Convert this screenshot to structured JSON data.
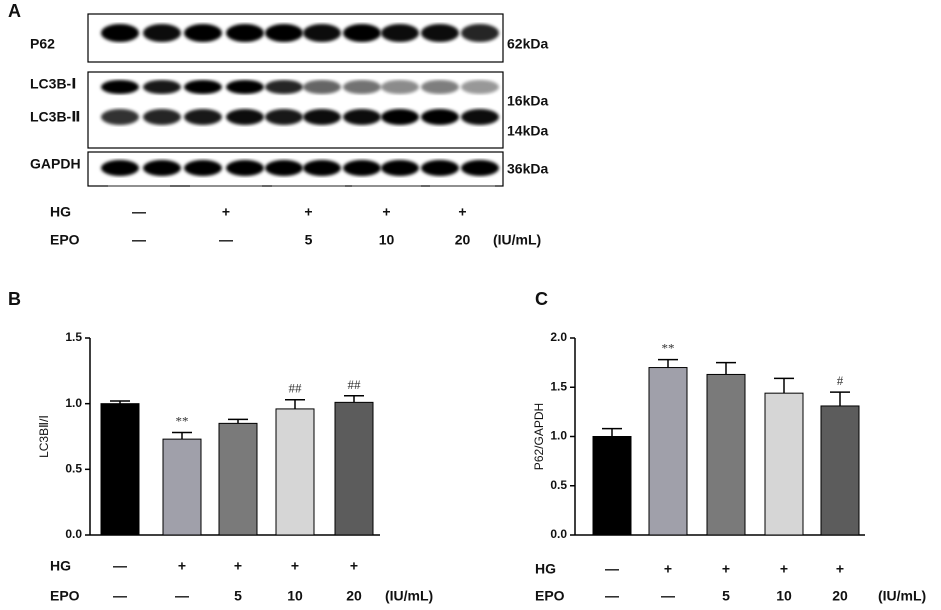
{
  "panel_labels": [
    "A",
    "B",
    "C"
  ],
  "blot": {
    "rows": [
      "P62",
      "LC3B-Ⅰ",
      "LC3B-Ⅱ",
      "GAPDH"
    ],
    "markers": [
      "62kDa",
      "16kDa",
      "14kDa",
      "36kDa"
    ],
    "conditions": [
      {
        "label": "HG",
        "values": [
          "—",
          "+",
          "+",
          "+",
          "+"
        ]
      },
      {
        "label": "EPO",
        "values": [
          "—",
          "—",
          "5",
          "10",
          "20"
        ],
        "unit": "(IU/mL)"
      }
    ]
  },
  "chart_data": [
    {
      "type": "bar",
      "y_label": "LC3BⅡ/Ⅰ",
      "values": [
        1.0,
        0.73,
        0.85,
        0.96,
        1.01
      ],
      "errors": [
        0.02,
        0.05,
        0.03,
        0.07,
        0.05
      ],
      "annotations": [
        null,
        "**",
        null,
        "##",
        "##"
      ],
      "colors": [
        "#000000",
        "#a0a0aa",
        "#7a7a7a",
        "#d6d6d6",
        "#5c5c5c"
      ],
      "ylim": [
        0,
        1.5
      ],
      "yticks": [
        {
          "value": 0,
          "label": "0.0"
        },
        {
          "value": 0.5,
          "label": "0.5"
        },
        {
          "value": 1,
          "label": "1.0"
        },
        {
          "value": 1.5,
          "label": "1.5"
        }
      ],
      "conditions": [
        {
          "label": "HG",
          "values": [
            "—",
            "+",
            "+",
            "+",
            "+"
          ]
        },
        {
          "label": "EPO",
          "values": [
            "—",
            "—",
            "5",
            "10",
            "20"
          ],
          "unit": "(IU/mL)"
        }
      ]
    },
    {
      "type": "bar",
      "y_label": "P62/GAPDH",
      "values": [
        1.0,
        1.7,
        1.63,
        1.44,
        1.31
      ],
      "errors": [
        0.08,
        0.08,
        0.12,
        0.15,
        0.14
      ],
      "annotations": [
        null,
        "**",
        null,
        null,
        "#"
      ],
      "colors": [
        "#000000",
        "#a0a0aa",
        "#7a7a7a",
        "#d6d6d6",
        "#5c5c5c"
      ],
      "ylim": [
        0,
        2
      ],
      "yticks": [
        {
          "value": 0,
          "label": "0.0"
        },
        {
          "value": 0.5,
          "label": "0.5"
        },
        {
          "value": 1,
          "label": "1.0"
        },
        {
          "value": 1.5,
          "label": "1.5"
        },
        {
          "value": 2,
          "label": "2.0"
        }
      ],
      "conditions": [
        {
          "label": "HG",
          "values": [
            "—",
            "+",
            "+",
            "+",
            "+"
          ]
        },
        {
          "label": "EPO",
          "values": [
            "—",
            "—",
            "5",
            "10",
            "20"
          ],
          "unit": "(IU/mL)"
        }
      ]
    }
  ]
}
